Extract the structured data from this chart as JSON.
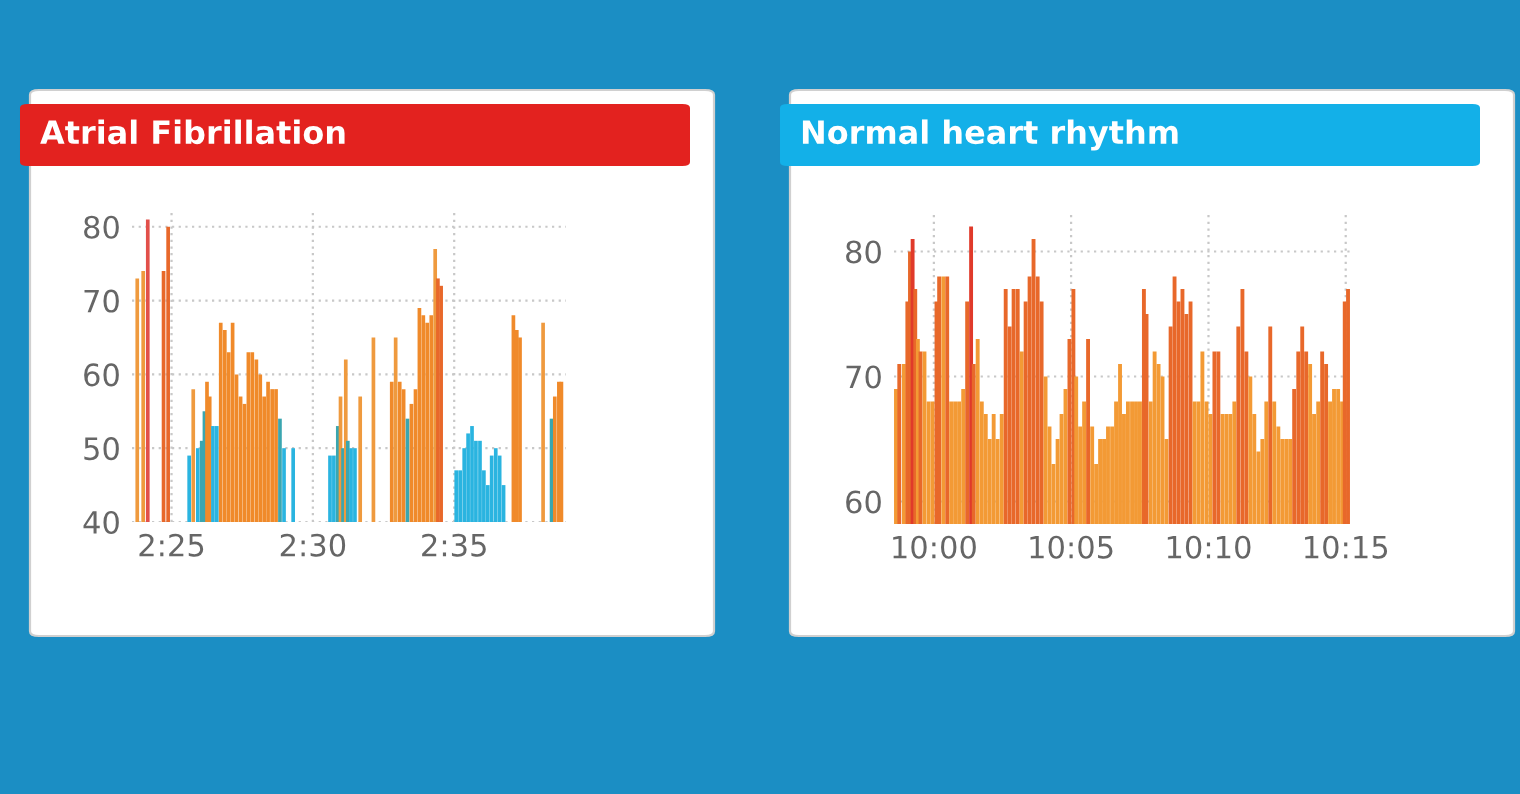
{
  "chart_data": [
    {
      "type": "bar",
      "title": "Atrial Fibrillation",
      "x": [
        2.3965,
        2.4,
        2.4027,
        2.412,
        2.4147,
        2.4271,
        2.4295,
        2.4322,
        2.4345,
        2.4361,
        2.4376,
        2.4392,
        2.4411,
        2.4434,
        2.4457,
        2.4481,
        2.4504,
        2.4527,
        2.455,
        2.4574,
        2.4597,
        2.462,
        2.4643,
        2.4667,
        2.469,
        2.4713,
        2.4736,
        2.476,
        2.4783,
        2.4806,
        2.483,
        2.4884,
        2.5101,
        2.5124,
        2.5147,
        2.5163,
        2.5178,
        2.5194,
        2.5206,
        2.5225,
        2.5248,
        2.5279,
        2.5357,
        2.5465,
        2.5488,
        2.5512,
        2.5535,
        2.5558,
        2.5581,
        2.5605,
        2.5628,
        2.5651,
        2.5674,
        2.5698,
        2.5721,
        2.5737,
        2.5756,
        2.5845,
        2.5868,
        2.5892,
        2.5915,
        2.5938,
        2.5961,
        2.5985,
        2.6008,
        2.6031,
        2.6054,
        2.6078,
        2.6101,
        2.6124,
        2.6182,
        2.6202,
        2.6221,
        2.6357,
        2.6407,
        2.6426,
        2.645,
        2.6465
      ],
      "series": [
        {
          "values": [
            73,
            74,
            81,
            74,
            80,
            49,
            58,
            50,
            51,
            55,
            59,
            57,
            53,
            53,
            67,
            66,
            63,
            67,
            60,
            57,
            56,
            63,
            63,
            62,
            60,
            57,
            59,
            58,
            58,
            54,
            50,
            50,
            49,
            49,
            53,
            57,
            50,
            62,
            51,
            50,
            50,
            57,
            65,
            59,
            65,
            59,
            58,
            54,
            56,
            58,
            69,
            68,
            67,
            68,
            77,
            73,
            72,
            47,
            47,
            50,
            52,
            53,
            51,
            51,
            47,
            45,
            49,
            50,
            49,
            45,
            68,
            66,
            65,
            67,
            54,
            57,
            59,
            59
          ],
          "colors": [
            "#ef9a3e",
            "#ef9a3e",
            "#e2504a",
            "#e8682a",
            "#e8682a",
            "#2ab4e0",
            "#ef9a3e",
            "#2ab4e0",
            "#3aa6b0",
            "#3aa6b0",
            "#f08a2a",
            "#f08a2a",
            "#2ab4e0",
            "#2ab4e0",
            "#f08a2a",
            "#f08a2a",
            "#f08a2a",
            "#f08a2a",
            "#f08a2a",
            "#f08a2a",
            "#f08a2a",
            "#f08a2a",
            "#f08a2a",
            "#f08a2a",
            "#f08a2a",
            "#f08a2a",
            "#f08a2a",
            "#f08a2a",
            "#f08a2a",
            "#3aa6b0",
            "#2ab4e0",
            "#2ab4e0",
            "#2ab4e0",
            "#2ab4e0",
            "#3aa6b0",
            "#ef9a3e",
            "#3aa6b0",
            "#ef9a3e",
            "#3aa6b0",
            "#2ab4e0",
            "#2ab4e0",
            "#ef9a3e",
            "#ef9a3e",
            "#f08a2a",
            "#ef9a3e",
            "#f08a2a",
            "#f08a2a",
            "#3aa6b0",
            "#f08a2a",
            "#f08a2a",
            "#f08a2a",
            "#f08a2a",
            "#f08a2a",
            "#f08a2a",
            "#ef9a3e",
            "#e8682a",
            "#e8682a",
            "#2ab4e0",
            "#2ab4e0",
            "#2ab4e0",
            "#2ab4e0",
            "#2ab4e0",
            "#2ab4e0",
            "#2ab4e0",
            "#2ab4e0",
            "#2ab4e0",
            "#2ab4e0",
            "#2ab4e0",
            "#2ab4e0",
            "#2ab4e0",
            "#f08a2a",
            "#f08a2a",
            "#f08a2a",
            "#ef9a3e",
            "#3aa6b0",
            "#f08a2a",
            "#f08a2a",
            "#f08a2a"
          ]
        }
      ],
      "xlim": [
        2.3934,
        2.6492
      ],
      "xticks": [
        {
          "value": 2.4167,
          "label": "2:25"
        },
        {
          "value": 2.5,
          "label": "2:30"
        },
        {
          "value": 2.5833,
          "label": "2:35"
        }
      ],
      "ylim": [
        40,
        82
      ],
      "yticks": [
        40,
        50,
        60,
        70,
        80
      ],
      "grid": true
    },
    {
      "type": "bar",
      "title": "Normal heart rhythm",
      "x": [
        9.977,
        9.979,
        9.9818,
        9.9839,
        9.9855,
        9.9871,
        9.9887,
        9.9903,
        9.9919,
        9.9943,
        9.9968,
        9.9992,
        10.0016,
        10.0032,
        10.0057,
        10.0081,
        10.0105,
        10.0129,
        10.0153,
        10.0178,
        10.0202,
        10.0226,
        10.0242,
        10.0266,
        10.0291,
        10.0315,
        10.0339,
        10.0363,
        10.0387,
        10.0412,
        10.0436,
        10.046,
        10.0484,
        10.0509,
        10.0533,
        10.0557,
        10.0581,
        10.0605,
        10.063,
        10.0654,
        10.0678,
        10.0702,
        10.0726,
        10.0751,
        10.0775,
        10.0799,
        10.0823,
        10.0847,
        10.0864,
        10.0888,
        10.0912,
        10.0936,
        10.0961,
        10.0985,
        10.1009,
        10.1033,
        10.1057,
        10.1082,
        10.1106,
        10.113,
        10.1154,
        10.1178,
        10.1203,
        10.1227,
        10.1251,
        10.1275,
        10.1291,
        10.1316,
        10.134,
        10.1364,
        10.1388,
        10.1412,
        10.1437,
        10.1461,
        10.1485,
        10.1509,
        10.1533,
        10.1558,
        10.1582,
        10.1606,
        10.163,
        10.1655,
        10.1679,
        10.1703,
        10.1727,
        10.1752,
        10.1776,
        10.18,
        10.1824,
        10.1848,
        10.1873,
        10.1897,
        10.1921,
        10.1945,
        10.197,
        10.1994,
        10.2018,
        10.2042,
        10.2066,
        10.2091,
        10.2115,
        10.2139,
        10.2163,
        10.2187,
        10.2212,
        10.2236,
        10.226,
        10.2284,
        10.2308,
        10.2333,
        10.2357,
        10.2381,
        10.2405,
        10.2429,
        10.2454,
        10.2478,
        10.2494,
        10.2514
      ],
      "series": [
        {
          "values": [
            69,
            71,
            71,
            76,
            80,
            81,
            77,
            73,
            72,
            72,
            68,
            68,
            76,
            78,
            78,
            78,
            68,
            68,
            68,
            69,
            76,
            82,
            71,
            73,
            68,
            67,
            65,
            67,
            65,
            67,
            77,
            74,
            77,
            77,
            72,
            76,
            78,
            81,
            78,
            76,
            70,
            66,
            63,
            65,
            67,
            69,
            73,
            77,
            70,
            66,
            68,
            73,
            66,
            63,
            65,
            65,
            66,
            66,
            68,
            71,
            67,
            68,
            68,
            68,
            68,
            77,
            75,
            68,
            72,
            71,
            70,
            65,
            74,
            78,
            76,
            77,
            75,
            76,
            68,
            68,
            72,
            68,
            67,
            72,
            72,
            67,
            67,
            67,
            68,
            74,
            77,
            72,
            70,
            67,
            64,
            65,
            68,
            74,
            68,
            66,
            65,
            65,
            65,
            69,
            72,
            74,
            72,
            71,
            67,
            68,
            72,
            71,
            68,
            69,
            69,
            68,
            76,
            77
          ],
          "colors": [
            "#f39a35",
            "#e8682a",
            "#f39a35",
            "#e8682a",
            "#e8682a",
            "#e03a2a",
            "#e8682a",
            "#f39a35",
            "#e8682a",
            "#f39a35",
            "#f39a35",
            "#f39a35",
            "#e8682a",
            "#e8682a",
            "#f39a35",
            "#e8682a",
            "#f39a35",
            "#f39a35",
            "#f39a35",
            "#f39a35",
            "#e8682a",
            "#e03a2a",
            "#e8682a",
            "#f39a35",
            "#f39a35",
            "#f39a35",
            "#f39a35",
            "#f39a35",
            "#f39a35",
            "#f39a35",
            "#e8682a",
            "#e8682a",
            "#e8682a",
            "#e8682a",
            "#f39a35",
            "#e8682a",
            "#e8682a",
            "#e8682a",
            "#e8682a",
            "#e8682a",
            "#f39a35",
            "#f39a35",
            "#f39a35",
            "#f39a35",
            "#f39a35",
            "#f39a35",
            "#e8682a",
            "#e8682a",
            "#f39a35",
            "#f39a35",
            "#f39a35",
            "#e8682a",
            "#f39a35",
            "#f39a35",
            "#f39a35",
            "#f39a35",
            "#f39a35",
            "#f39a35",
            "#f39a35",
            "#f39a35",
            "#f39a35",
            "#f39a35",
            "#f39a35",
            "#f39a35",
            "#f39a35",
            "#e8682a",
            "#e8682a",
            "#f39a35",
            "#f39a35",
            "#f39a35",
            "#f39a35",
            "#f39a35",
            "#e8682a",
            "#e8682a",
            "#e8682a",
            "#e8682a",
            "#e8682a",
            "#e8682a",
            "#f39a35",
            "#f39a35",
            "#f39a35",
            "#f39a35",
            "#f39a35",
            "#e8682a",
            "#e8682a",
            "#f39a35",
            "#f39a35",
            "#f39a35",
            "#f39a35",
            "#e8682a",
            "#e8682a",
            "#e8682a",
            "#f39a35",
            "#f39a35",
            "#f39a35",
            "#f39a35",
            "#f39a35",
            "#e8682a",
            "#f39a35",
            "#f39a35",
            "#f39a35",
            "#f39a35",
            "#f39a35",
            "#e8682a",
            "#e8682a",
            "#e8682a",
            "#e8682a",
            "#f39a35",
            "#f39a35",
            "#f39a35",
            "#e8682a",
            "#e8682a",
            "#f39a35",
            "#f39a35",
            "#f39a35",
            "#f39a35",
            "#e8682a",
            "#e8682a"
          ]
        }
      ],
      "xlim": [
        9.9758,
        10.2526
      ],
      "xticks": [
        {
          "value": 10,
          "label": "10:00"
        },
        {
          "value": 10.0833,
          "label": "10:05"
        },
        {
          "value": 10.1667,
          "label": "10:10"
        },
        {
          "value": 10.25,
          "label": "10:15"
        }
      ],
      "ylim": [
        58.2,
        83
      ],
      "yticks": [
        60,
        70,
        80
      ],
      "grid": true
    }
  ]
}
